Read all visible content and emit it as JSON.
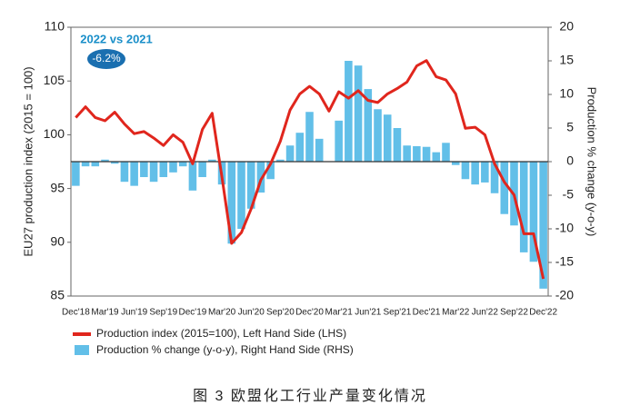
{
  "chart_data": {
    "type": "bar-line",
    "caption": "图 3  欧盟化工行业产量变化情况",
    "y_label": "EU27 production index (2015 = 100)",
    "y2_label": "Production % change (y-o-y)",
    "annotations": [
      "2022 vs 2021",
      "-6.2%"
    ],
    "categories": [
      "Dec'18",
      null,
      null,
      "Mar'19",
      null,
      null,
      "Jun'19",
      null,
      null,
      "Sep'19",
      null,
      null,
      "Dec'19",
      null,
      null,
      "Mar'20",
      null,
      null,
      "Jun'20",
      null,
      null,
      "Sep'20",
      null,
      null,
      "Dec'20",
      null,
      null,
      "Mar'21",
      null,
      null,
      "Jun'21",
      null,
      null,
      "Sep'21",
      null,
      null,
      "Dec'21",
      null,
      null,
      "Mar'22",
      null,
      null,
      "Jun'22",
      null,
      null,
      "Sep'22",
      null,
      null,
      "Dec'22"
    ],
    "series": [
      {
        "name": "Production index (2015=100), Left Hand Side (LHS)",
        "type": "line",
        "color": "#e0261d",
        "values": [
          101.6,
          102.6,
          101.6,
          101.3,
          102.1,
          101.0,
          100.1,
          100.3,
          99.7,
          99.0,
          100.0,
          99.3,
          97.3,
          100.5,
          102.0,
          96.1,
          89.9,
          90.9,
          93.1,
          95.8,
          97.3,
          99.4,
          102.3,
          103.8,
          104.5,
          103.8,
          102.2,
          104.0,
          103.4,
          104.1,
          103.2,
          103.0,
          103.8,
          104.3,
          104.9,
          106.4,
          106.9,
          105.4,
          105.1,
          103.8,
          100.6,
          100.7,
          100.0,
          97.3,
          95.6,
          94.4,
          90.8,
          90.8,
          86.6
        ]
      },
      {
        "name": "Production % change (y-o-y), Right Hand Side (RHS)",
        "type": "bar",
        "axis": "y2",
        "color": "#62bfe8",
        "values": [
          -3.6,
          -0.7,
          -0.7,
          0.3,
          -0.3,
          -3.0,
          -3.6,
          -2.3,
          -3.0,
          -2.3,
          -1.6,
          -0.7,
          -4.3,
          -2.3,
          0.3,
          -3.4,
          -12.2,
          -10.0,
          -7.0,
          -4.6,
          -2.6,
          0.3,
          2.4,
          4.3,
          7.4,
          3.4,
          0,
          6.1,
          15.0,
          14.3,
          10.8,
          7.8,
          7.0,
          5.0,
          2.4,
          2.3,
          2.2,
          1.4,
          2.8,
          -0.5,
          -2.6,
          -3.4,
          -3.1,
          -4.7,
          -7.8,
          -9.5,
          -13.5,
          -14.9,
          -18.9
        ]
      }
    ],
    "ylim": [
      85,
      110
    ],
    "yticks": [
      85,
      90,
      95,
      100,
      105,
      110
    ],
    "y2lim": [
      -20,
      20
    ],
    "y2ticks": [
      -20,
      -15,
      -10,
      -5,
      0,
      5,
      10,
      15,
      20
    ]
  }
}
